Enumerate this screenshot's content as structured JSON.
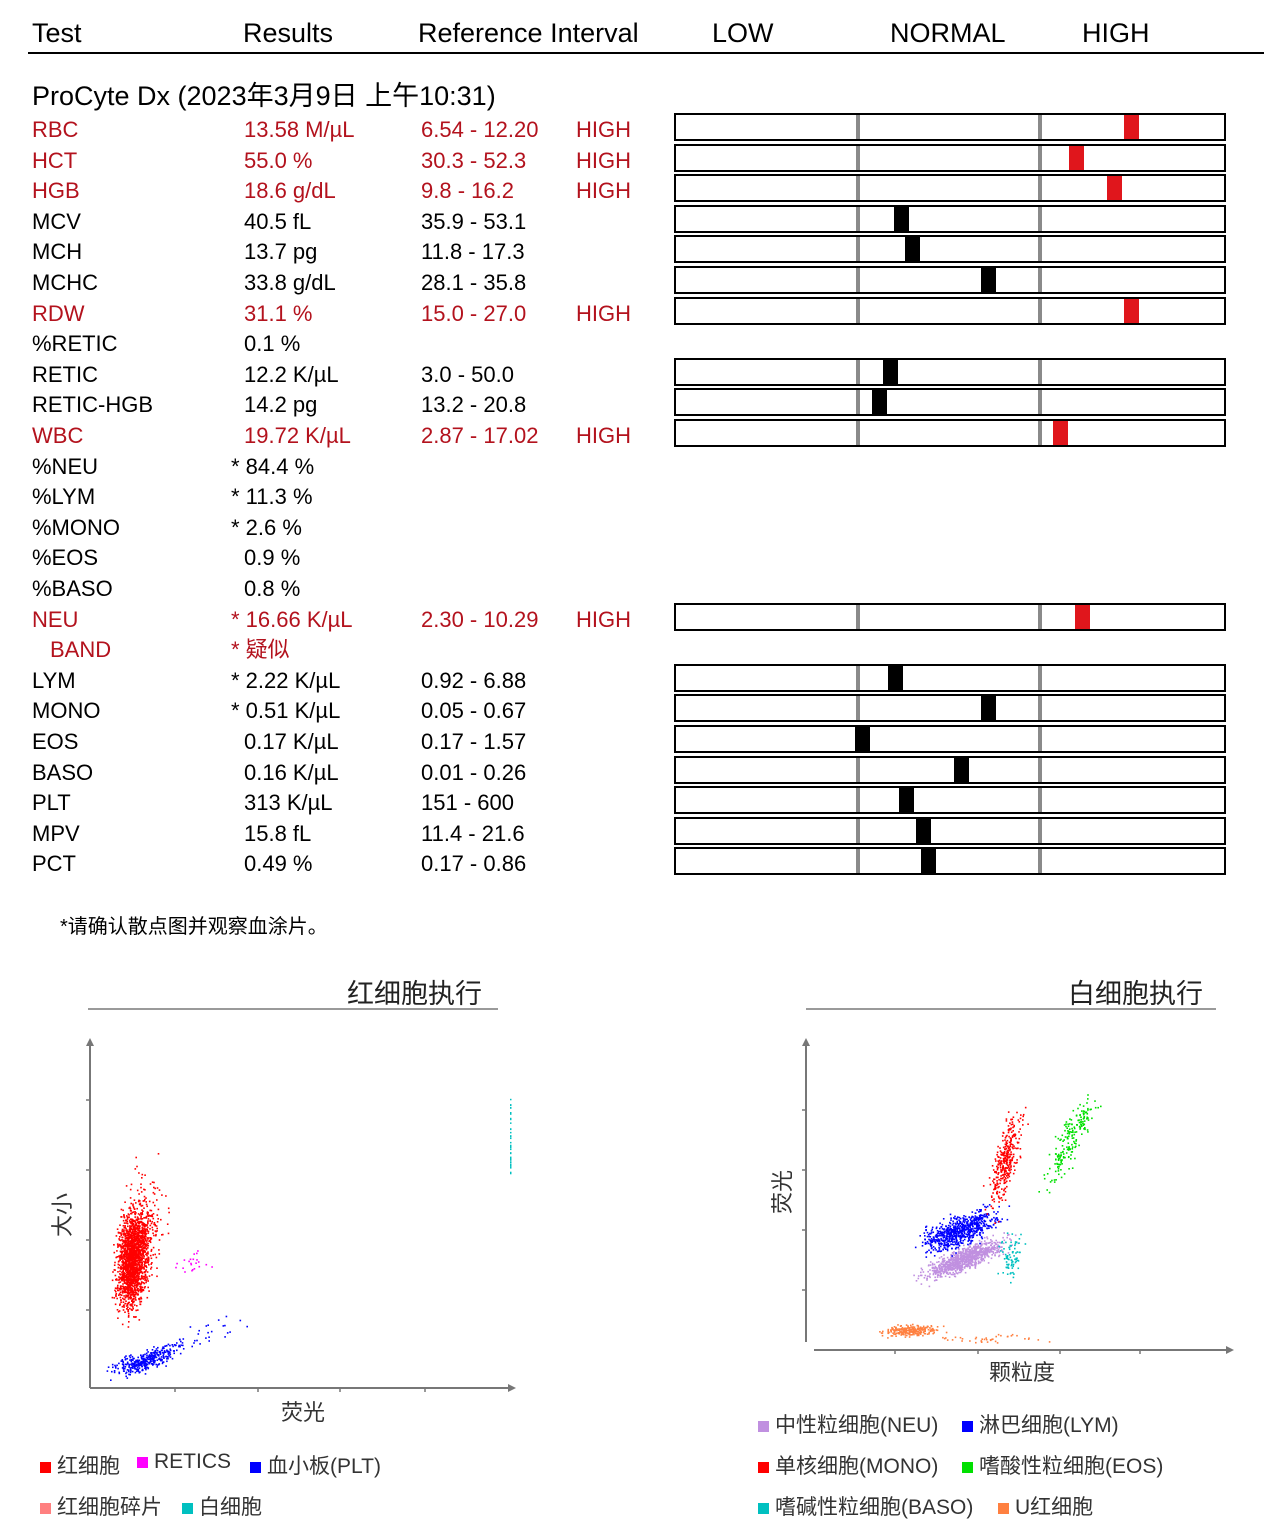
{
  "header": {
    "test": "Test",
    "results": "Results",
    "reference": "Reference Interval",
    "low": "LOW",
    "normal": "NORMAL",
    "high": "HIGH"
  },
  "run_title": "ProCyte Dx (2023年3月9日 上午10:31)",
  "rows": [
    {
      "test": "RBC",
      "result": "13.58 M/µL",
      "ref": "6.54 - 12.20",
      "flag": "HIGH",
      "level": 0.83
    },
    {
      "test": "HCT",
      "result": "55.0 %",
      "ref": "30.3 - 52.3",
      "flag": "HIGH",
      "level": 0.73
    },
    {
      "test": "HGB",
      "result": "18.6 g/dL",
      "ref": "9.8 - 16.2",
      "flag": "HIGH",
      "level": 0.8
    },
    {
      "test": "MCV",
      "result": "40.5 fL",
      "ref": "35.9 - 53.1",
      "flag": "",
      "level": 0.41
    },
    {
      "test": "MCH",
      "result": "13.7 pg",
      "ref": "11.8 - 17.3",
      "flag": "",
      "level": 0.43
    },
    {
      "test": "MCHC",
      "result": "33.8 g/dL",
      "ref": "28.1 - 35.8",
      "flag": "",
      "level": 0.57
    },
    {
      "test": "RDW",
      "result": "31.1 %",
      "ref": "15.0 - 27.0",
      "flag": "HIGH",
      "level": 0.83
    },
    {
      "test": "%RETIC",
      "result": "0.1 %",
      "ref": "",
      "flag": "",
      "level": null
    },
    {
      "test": "RETIC",
      "result": "12.2 K/µL",
      "ref": "3.0 - 50.0",
      "flag": "",
      "level": 0.39
    },
    {
      "test": "RETIC-HGB",
      "result": "14.2 pg",
      "ref": "13.2 - 20.8",
      "flag": "",
      "level": 0.37
    },
    {
      "test": "WBC",
      "result": "19.72 K/µL",
      "ref": "2.87 - 17.02",
      "flag": "HIGH",
      "level": 0.7
    },
    {
      "test": "%NEU",
      "result": "* 84.4 %",
      "ref": "",
      "flag": "",
      "level": null
    },
    {
      "test": "%LYM",
      "result": "* 11.3 %",
      "ref": "",
      "flag": "",
      "level": null
    },
    {
      "test": "%MONO",
      "result": "* 2.6 %",
      "ref": "",
      "flag": "",
      "level": null
    },
    {
      "test": "%EOS",
      "result": "0.9 %",
      "ref": "",
      "flag": "",
      "level": null
    },
    {
      "test": "%BASO",
      "result": "0.8 %",
      "ref": "",
      "flag": "",
      "level": null
    },
    {
      "test": "NEU",
      "result": "* 16.66 K/µL",
      "ref": "2.30 - 10.29",
      "flag": "HIGH",
      "level": 0.74
    },
    {
      "test": "BAND",
      "result": "* 疑似",
      "ref": "",
      "flag": "",
      "level": null
    },
    {
      "test": "LYM",
      "result": "* 2.22 K/µL",
      "ref": "0.92 - 6.88",
      "flag": "",
      "level": 0.4
    },
    {
      "test": "MONO",
      "result": "* 0.51 K/µL",
      "ref": "0.05 - 0.67",
      "flag": "",
      "level": 0.57
    },
    {
      "test": "EOS",
      "result": "0.17 K/µL",
      "ref": "0.17 - 1.57",
      "flag": "",
      "level": 0.34
    },
    {
      "test": "BASO",
      "result": "0.16 K/µL",
      "ref": "0.01 - 0.26",
      "flag": "",
      "level": 0.52
    },
    {
      "test": "PLT",
      "result": "313 K/µL",
      "ref": "151 - 600",
      "flag": "",
      "level": 0.42
    },
    {
      "test": "MPV",
      "result": "15.8 fL",
      "ref": "11.4 - 21.6",
      "flag": "",
      "level": 0.45
    },
    {
      "test": "PCT",
      "result": "0.49 %",
      "ref": "0.17 - 0.86",
      "flag": "",
      "level": 0.46
    }
  ],
  "footnote": "*请确认散点图并观察血涂片。",
  "rbc_plot": {
    "title": "红细胞执行",
    "xlabel": "荧光",
    "ylabel": "大小",
    "legend": [
      {
        "label": "红细胞",
        "color": "#ff0000"
      },
      {
        "label": "RETICS",
        "color": "#ff00ff"
      },
      {
        "label": "血小板(PLT)",
        "color": "#0000ff"
      },
      {
        "label": "红细胞碎片",
        "color": "#ff8080"
      },
      {
        "label": "白细胞",
        "color": "#00c0c0"
      }
    ]
  },
  "wbc_plot": {
    "title": "白细胞执行",
    "xlabel": "颗粒度",
    "ylabel": "荧光",
    "legend": [
      {
        "label": "中性粒细胞(NEU)",
        "color": "#c090e0"
      },
      {
        "label": "淋巴细胞(LYM)",
        "color": "#0000ff"
      },
      {
        "label": "单核细胞(MONO)",
        "color": "#ff0000"
      },
      {
        "label": "嗜酸性粒细胞(EOS)",
        "color": "#00e000"
      },
      {
        "label": "嗜碱性粒细胞(BASO)",
        "color": "#00c0c0"
      },
      {
        "label": "U红细胞",
        "color": "#ff8040"
      }
    ]
  },
  "colors": {
    "flag_red": "#b3121d",
    "marker_red": "#e0161c",
    "marker_black": "#000000"
  }
}
